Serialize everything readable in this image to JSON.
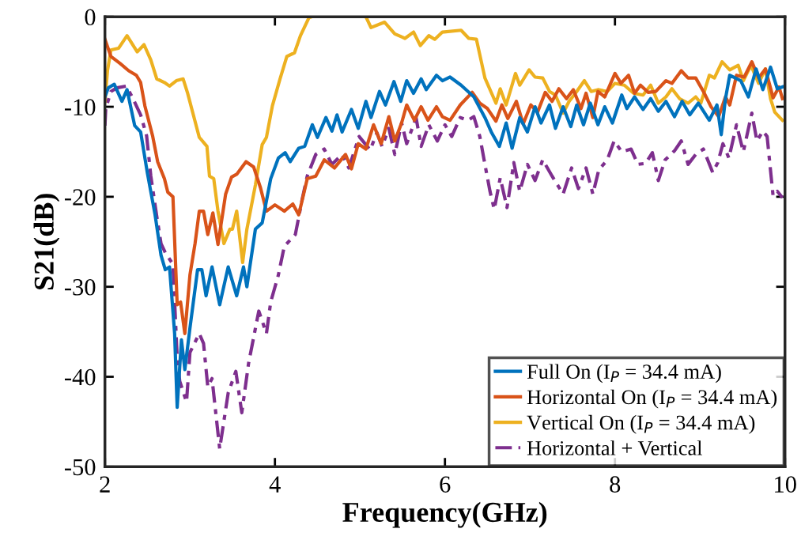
{
  "chart_data": {
    "type": "line",
    "xlabel": "Frequency(GHz)",
    "ylabel": "S21(dB)",
    "xlim": [
      2,
      10
    ],
    "ylim": [
      -50,
      0
    ],
    "xticks": [
      2,
      4,
      6,
      8,
      10
    ],
    "yticks": [
      -50,
      -40,
      -30,
      -20,
      -10,
      0
    ],
    "grid": false,
    "legend": "bottom right",
    "marker": "none",
    "series": [
      {
        "name": "Full On (I$_{P}$ = 34.4 mA)",
        "color": "#0072bd",
        "line_style": "solid",
        "x": [
          2.0,
          2.04,
          2.11,
          2.2,
          2.26,
          2.35,
          2.42,
          2.5,
          2.59,
          2.66,
          2.71,
          2.76,
          2.82,
          2.85,
          2.9,
          2.94,
          3.0,
          3.09,
          3.14,
          3.19,
          3.26,
          3.35,
          3.45,
          3.55,
          3.63,
          3.67,
          3.77,
          3.85,
          3.95,
          4.04,
          4.12,
          4.18,
          4.28,
          4.35,
          4.44,
          4.5,
          4.6,
          4.67,
          4.73,
          4.79,
          4.9,
          4.98,
          5.07,
          5.13,
          5.23,
          5.3,
          5.4,
          5.48,
          5.55,
          5.63,
          5.72,
          5.78,
          5.9,
          5.97,
          6.06,
          6.19,
          6.34,
          6.47,
          6.55,
          6.64,
          6.72,
          6.79,
          6.88,
          6.97,
          7.06,
          7.13,
          7.23,
          7.3,
          7.39,
          7.48,
          7.55,
          7.63,
          7.71,
          7.8,
          7.88,
          7.97,
          8.08,
          8.14,
          8.23,
          8.33,
          8.42,
          8.51,
          8.6,
          8.7,
          8.79,
          8.88,
          8.98,
          9.11,
          9.2,
          9.25,
          9.3,
          9.35,
          9.48,
          9.57,
          9.66,
          9.74,
          9.83,
          9.91,
          9.97
        ],
        "values": [
          -8.9,
          -7.9,
          -7.5,
          -9.4,
          -8.1,
          -12.1,
          -12.8,
          -17.4,
          -22.0,
          -26.5,
          -28.1,
          -27.8,
          -35.2,
          -43.4,
          -35.9,
          -39.2,
          -34.6,
          -28.1,
          -28.1,
          -31.0,
          -27.8,
          -32.0,
          -27.8,
          -31.0,
          -27.8,
          -30.0,
          -23.6,
          -22.9,
          -18.0,
          -15.7,
          -15.1,
          -16.1,
          -14.6,
          -14.4,
          -12.0,
          -13.4,
          -11.2,
          -12.7,
          -10.9,
          -12.8,
          -10.3,
          -12.4,
          -9.4,
          -11.2,
          -8.3,
          -9.8,
          -7.2,
          -9.4,
          -7.1,
          -8.5,
          -6.9,
          -8.1,
          -6.5,
          -7.1,
          -6.7,
          -7.6,
          -8.9,
          -11.2,
          -12.9,
          -14.4,
          -11.8,
          -14.6,
          -11.2,
          -12.8,
          -10.0,
          -11.8,
          -9.8,
          -12.4,
          -10.0,
          -12.2,
          -9.8,
          -12.0,
          -9.6,
          -12.0,
          -10.0,
          -11.8,
          -8.7,
          -10.2,
          -8.9,
          -10.3,
          -9.1,
          -10.5,
          -9.4,
          -11.1,
          -9.4,
          -10.9,
          -9.6,
          -11.5,
          -9.8,
          -13.1,
          -9.1,
          -6.5,
          -7.1,
          -8.9,
          -5.8,
          -8.1,
          -5.6,
          -8.0,
          -7.8
        ]
      },
      {
        "name": "Horizontal On (I$_{P}$ = 34.4 mA)",
        "color": "#d95319",
        "line_style": "solid",
        "x": [
          2.0,
          2.07,
          2.18,
          2.28,
          2.37,
          2.42,
          2.47,
          2.56,
          2.62,
          2.7,
          2.74,
          2.8,
          2.85,
          2.89,
          2.94,
          3.0,
          3.06,
          3.11,
          3.16,
          3.21,
          3.27,
          3.33,
          3.42,
          3.49,
          3.55,
          3.66,
          3.75,
          3.83,
          3.9,
          4.0,
          4.11,
          4.21,
          4.28,
          4.38,
          4.48,
          4.58,
          4.7,
          4.83,
          4.9,
          4.98,
          5.07,
          5.16,
          5.25,
          5.34,
          5.41,
          5.49,
          5.55,
          5.64,
          5.72,
          5.8,
          5.9,
          5.97,
          6.06,
          6.18,
          6.32,
          6.41,
          6.5,
          6.6,
          6.67,
          6.74,
          6.84,
          6.92,
          7.01,
          7.09,
          7.18,
          7.26,
          7.34,
          7.43,
          7.51,
          7.6,
          7.66,
          7.74,
          7.8,
          7.88,
          8.0,
          8.07,
          8.16,
          8.23,
          8.3,
          8.39,
          8.48,
          8.6,
          8.67,
          8.78,
          8.86,
          8.95,
          9.04,
          9.13,
          9.22,
          9.3,
          9.35,
          9.43,
          9.52,
          9.61,
          9.69,
          9.77,
          9.86,
          9.93,
          9.97
        ],
        "values": [
          -2.5,
          -4.4,
          -5.2,
          -6.0,
          -6.5,
          -7.3,
          -9.9,
          -13.2,
          -16.1,
          -18.0,
          -19.5,
          -20.0,
          -32.0,
          -31.7,
          -35.2,
          -28.7,
          -25.2,
          -21.6,
          -21.6,
          -24.2,
          -21.8,
          -25.3,
          -19.7,
          -17.8,
          -17.5,
          -16.1,
          -16.7,
          -19.0,
          -21.6,
          -20.9,
          -21.6,
          -20.8,
          -22.0,
          -18.0,
          -17.7,
          -15.9,
          -16.8,
          -15.3,
          -16.9,
          -14.1,
          -14.7,
          -12.0,
          -14.1,
          -11.1,
          -13.8,
          -11.8,
          -9.8,
          -11.5,
          -10.0,
          -11.5,
          -10.0,
          -11.1,
          -11.5,
          -9.8,
          -8.4,
          -9.6,
          -10.2,
          -11.6,
          -9.8,
          -11.3,
          -9.4,
          -11.9,
          -9.8,
          -10.6,
          -8.4,
          -9.4,
          -8.0,
          -9.1,
          -8.1,
          -10.2,
          -8.5,
          -11.2,
          -8.3,
          -8.9,
          -6.3,
          -7.4,
          -6.5,
          -8.5,
          -7.6,
          -8.4,
          -8.3,
          -7.1,
          -7.4,
          -6.0,
          -6.8,
          -6.8,
          -8.3,
          -10.0,
          -11.1,
          -8.9,
          -9.8,
          -6.5,
          -6.7,
          -5.0,
          -6.8,
          -5.8,
          -9.0,
          -7.8,
          -9.1
        ]
      },
      {
        "name": "Vertical On (I$_{P}$ = 34.4 mA)",
        "color": "#edb120",
        "line_style": "solid",
        "x": [
          2.0,
          2.03,
          2.07,
          2.16,
          2.26,
          2.38,
          2.46,
          2.54,
          2.61,
          2.7,
          2.76,
          2.84,
          2.92,
          2.97,
          3.04,
          3.11,
          3.2,
          3.23,
          3.28,
          3.33,
          3.4,
          3.47,
          3.5,
          3.55,
          3.62,
          3.67,
          3.77,
          3.85,
          3.9,
          3.97,
          4.06,
          4.14,
          4.23,
          4.3,
          4.4,
          4.43,
          4.75,
          5.07,
          5.13,
          5.29,
          5.41,
          5.53,
          5.63,
          5.71,
          5.81,
          5.88,
          5.97,
          6.19,
          6.28,
          6.37,
          6.47,
          6.6,
          6.65,
          6.72,
          6.83,
          6.88,
          6.99,
          7.06,
          7.15,
          7.23,
          7.3,
          7.39,
          7.46,
          7.55,
          7.64,
          7.72,
          7.8,
          7.91,
          8.0,
          8.11,
          8.22,
          8.33,
          8.42,
          8.51,
          8.6,
          8.67,
          8.76,
          8.86,
          8.95,
          9.01,
          9.11,
          9.17,
          9.26,
          9.35,
          9.45,
          9.51,
          9.6,
          9.69,
          9.77,
          9.83,
          9.88,
          9.97
        ],
        "values": [
          -9.4,
          -6.0,
          -3.7,
          -3.5,
          -2.1,
          -3.9,
          -3.1,
          -4.8,
          -6.9,
          -7.3,
          -7.7,
          -7.1,
          -6.9,
          -8.4,
          -10.9,
          -13.4,
          -14.4,
          -17.7,
          -18.0,
          -21.6,
          -25.2,
          -23.6,
          -23.6,
          -21.6,
          -27.3,
          -23.6,
          -18.7,
          -14.2,
          -13.4,
          -9.9,
          -6.9,
          -4.4,
          -4.0,
          -2.1,
          -0.1,
          0,
          null,
          0,
          -1.2,
          -0.6,
          -1.9,
          -2.4,
          -1.7,
          -3.2,
          -2.1,
          -2.5,
          -1.7,
          -1.5,
          -2.4,
          -2.5,
          -6.8,
          -9.6,
          -8.0,
          -9.8,
          -6.3,
          -7.6,
          -5.9,
          -6.7,
          -6.8,
          -8.3,
          -8.7,
          -10.7,
          -9.4,
          -8.3,
          -7.1,
          -8.3,
          -8.1,
          -8.3,
          -7.4,
          -7.6,
          -8.5,
          -8.7,
          -7.6,
          -9.6,
          -8.9,
          -8.0,
          -9.1,
          -9.6,
          -8.9,
          -9.6,
          -6.5,
          -6.8,
          -5.0,
          -5.9,
          -5.4,
          -7.1,
          -5.4,
          -7.4,
          -5.8,
          -9.1,
          -10.6,
          -11.5
        ]
      },
      {
        "name": "Horizontal + Vertical",
        "color": "#7e2f8e",
        "line_style": "dashed",
        "x": [
          2.0,
          2.01,
          2.07,
          2.14,
          2.25,
          2.32,
          2.42,
          2.49,
          2.54,
          2.61,
          2.66,
          2.71,
          2.8,
          2.85,
          2.88,
          2.96,
          3.0,
          3.11,
          3.16,
          3.21,
          3.26,
          3.35,
          3.45,
          3.54,
          3.61,
          3.69,
          3.81,
          3.9,
          3.95,
          4.04,
          4.11,
          4.24,
          4.32,
          4.38,
          4.48,
          4.58,
          4.67,
          4.79,
          4.87,
          4.99,
          5.12,
          5.2,
          5.26,
          5.34,
          5.41,
          5.49,
          5.55,
          5.66,
          5.72,
          5.81,
          5.91,
          6.0,
          6.08,
          6.18,
          6.27,
          6.34,
          6.41,
          6.47,
          6.53,
          6.58,
          6.65,
          6.73,
          6.81,
          6.88,
          6.97,
          7.06,
          7.15,
          7.26,
          7.39,
          7.49,
          7.57,
          7.66,
          7.74,
          7.81,
          7.91,
          7.99,
          8.08,
          8.19,
          8.27,
          8.36,
          8.44,
          8.51,
          8.59,
          8.7,
          8.78,
          8.86,
          8.95,
          9.04,
          9.15,
          9.21,
          9.27,
          9.34,
          9.43,
          9.51,
          9.61,
          9.67,
          9.74,
          9.79,
          9.86,
          9.91,
          9.97
        ],
        "values": [
          -12.1,
          -10.2,
          -8.3,
          -7.9,
          -7.7,
          -8.9,
          -10.9,
          -13.2,
          -17.7,
          -22.2,
          -25.2,
          -26.2,
          -27.5,
          -37.9,
          -40.5,
          -42.8,
          -37.3,
          -35.2,
          -36.3,
          -41.1,
          -40.2,
          -48.0,
          -41.8,
          -39.4,
          -44.0,
          -38.5,
          -32.7,
          -35.2,
          -31.7,
          -28.7,
          -25.5,
          -24.2,
          -20.3,
          -17.7,
          -15.3,
          -14.7,
          -16.4,
          -15.3,
          -16.8,
          -13.3,
          -14.8,
          -12.9,
          -14.4,
          -12.4,
          -15.3,
          -11.8,
          -14.1,
          -11.2,
          -14.4,
          -12.0,
          -13.8,
          -12.0,
          -13.3,
          -11.2,
          -11.5,
          -11.1,
          -13.3,
          -16.4,
          -19.4,
          -21.4,
          -17.9,
          -21.2,
          -16.2,
          -19.4,
          -16.4,
          -18.2,
          -15.9,
          -17.7,
          -19.7,
          -16.8,
          -19.1,
          -16.8,
          -19.7,
          -17.0,
          -15.9,
          -13.8,
          -15.0,
          -14.7,
          -16.4,
          -16.3,
          -15.1,
          -18.2,
          -15.9,
          -14.9,
          -13.8,
          -16.4,
          -15.3,
          -14.7,
          -17.3,
          -16.2,
          -14.1,
          -15.7,
          -12.0,
          -15.0,
          -10.7,
          -13.8,
          -12.7,
          -13.3,
          -19.9,
          -19.4,
          -20.1
        ]
      }
    ]
  }
}
